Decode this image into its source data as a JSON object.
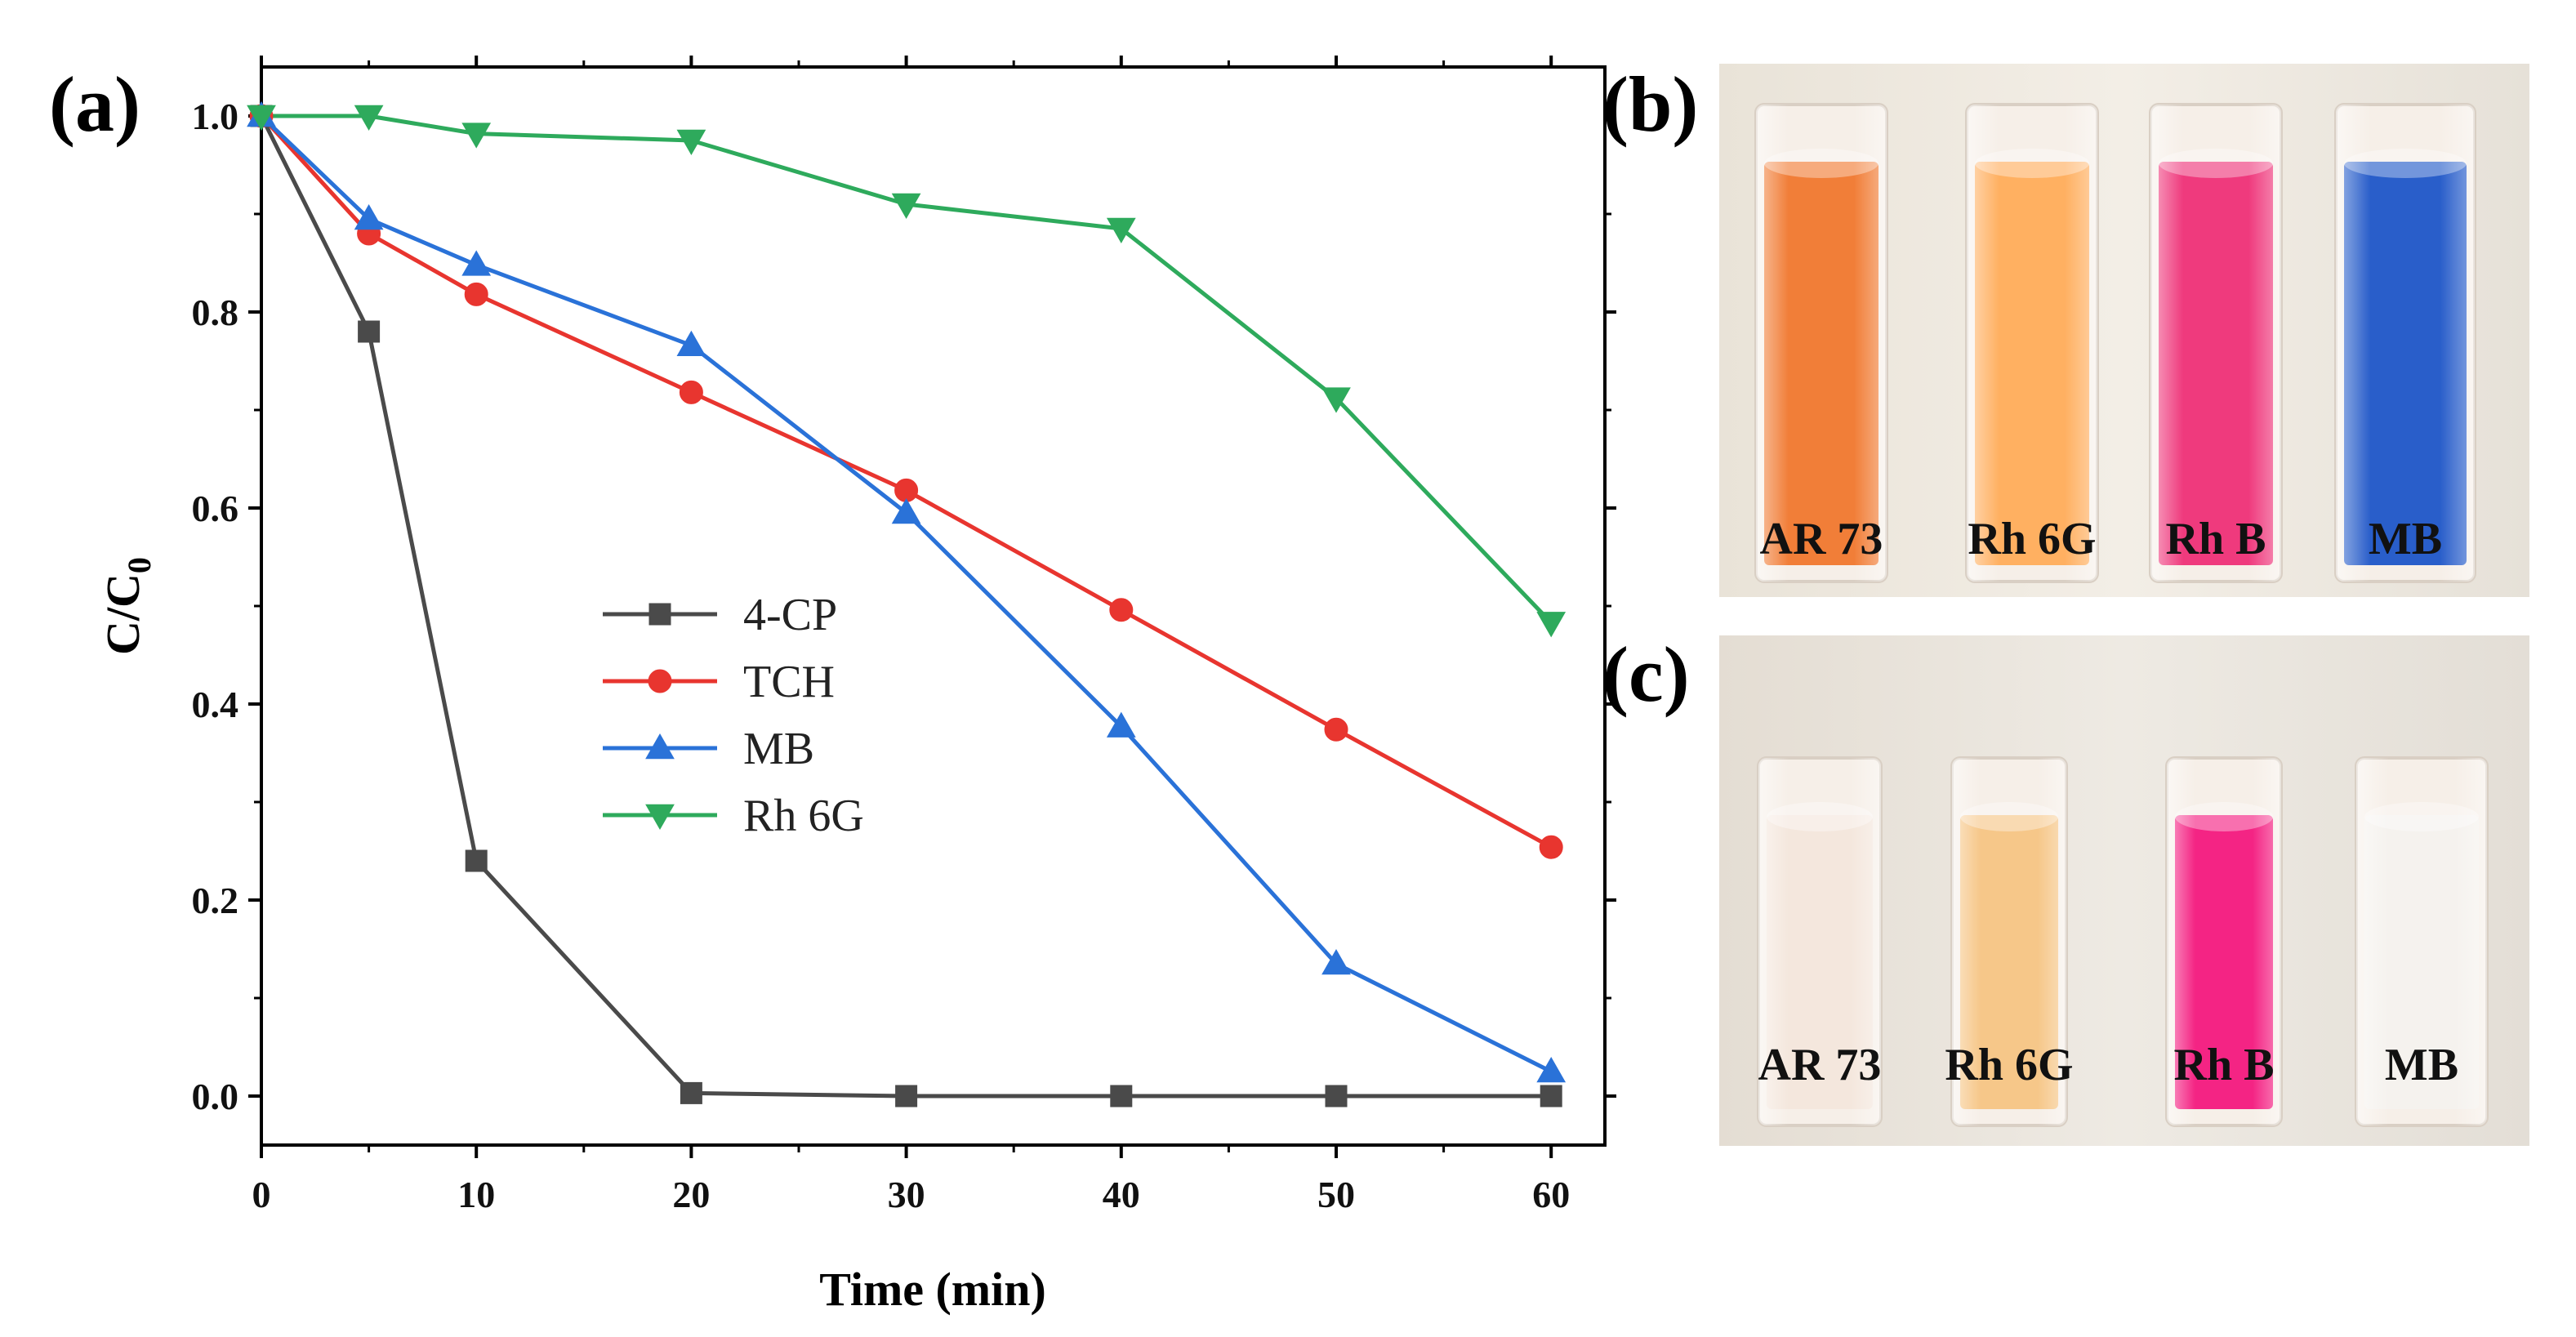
{
  "panels": {
    "a": "(a)",
    "b": "(b)",
    "c": "(c)"
  },
  "chart_data": {
    "type": "line",
    "title": "",
    "xlabel": "Time (min)",
    "ylabel_main": "C/C",
    "ylabel_sub": "0",
    "xlim": [
      0,
      62.5
    ],
    "ylim": [
      -0.05,
      1.05
    ],
    "xticks": [
      0,
      10,
      20,
      30,
      40,
      50,
      60
    ],
    "yticks": [
      0.0,
      0.2,
      0.4,
      0.6,
      0.8,
      1.0
    ],
    "ytick_labels": [
      "0.0",
      "0.2",
      "0.4",
      "0.6",
      "0.8",
      "1.0"
    ],
    "legend_position": "center",
    "series": [
      {
        "name": "4-CP",
        "color": "#4a4a4a",
        "marker": "square",
        "x": [
          0,
          5,
          10,
          20,
          30,
          40,
          50,
          60
        ],
        "y": [
          1.0,
          0.78,
          0.24,
          0.003,
          0.0,
          0.0,
          0.0,
          0.0
        ]
      },
      {
        "name": "TCH",
        "color": "#e8352f",
        "marker": "circle",
        "x": [
          0,
          5,
          10,
          20,
          30,
          40,
          50,
          60
        ],
        "y": [
          1.0,
          0.88,
          0.818,
          0.718,
          0.618,
          0.496,
          0.374,
          0.254
        ]
      },
      {
        "name": "MB",
        "color": "#2a72d8",
        "marker": "triangle-up",
        "x": [
          0,
          5,
          10,
          20,
          30,
          40,
          50,
          60
        ],
        "y": [
          1.0,
          0.895,
          0.848,
          0.766,
          0.595,
          0.377,
          0.135,
          0.025
        ]
      },
      {
        "name": "Rh 6G",
        "color": "#2eaa5c",
        "marker": "triangle-down",
        "x": [
          0,
          5,
          10,
          20,
          30,
          40,
          50,
          60
        ],
        "y": [
          1.0,
          1.0,
          0.982,
          0.975,
          0.91,
          0.885,
          0.712,
          0.483
        ]
      }
    ]
  },
  "photos": {
    "b": {
      "labels": [
        "AR 73",
        "Rh 6G",
        "Rh B",
        "MB"
      ],
      "liquid_colors": [
        "#f0772e",
        "#ffac5a",
        "#ee2f77",
        "#1e55c8"
      ]
    },
    "c": {
      "labels": [
        "AR 73",
        "Rh 6G",
        "Rh B",
        "MB"
      ],
      "liquid_colors": [
        "#f3e6dc",
        "#f6c484",
        "#f3187e",
        "#f4f1ee"
      ]
    }
  }
}
